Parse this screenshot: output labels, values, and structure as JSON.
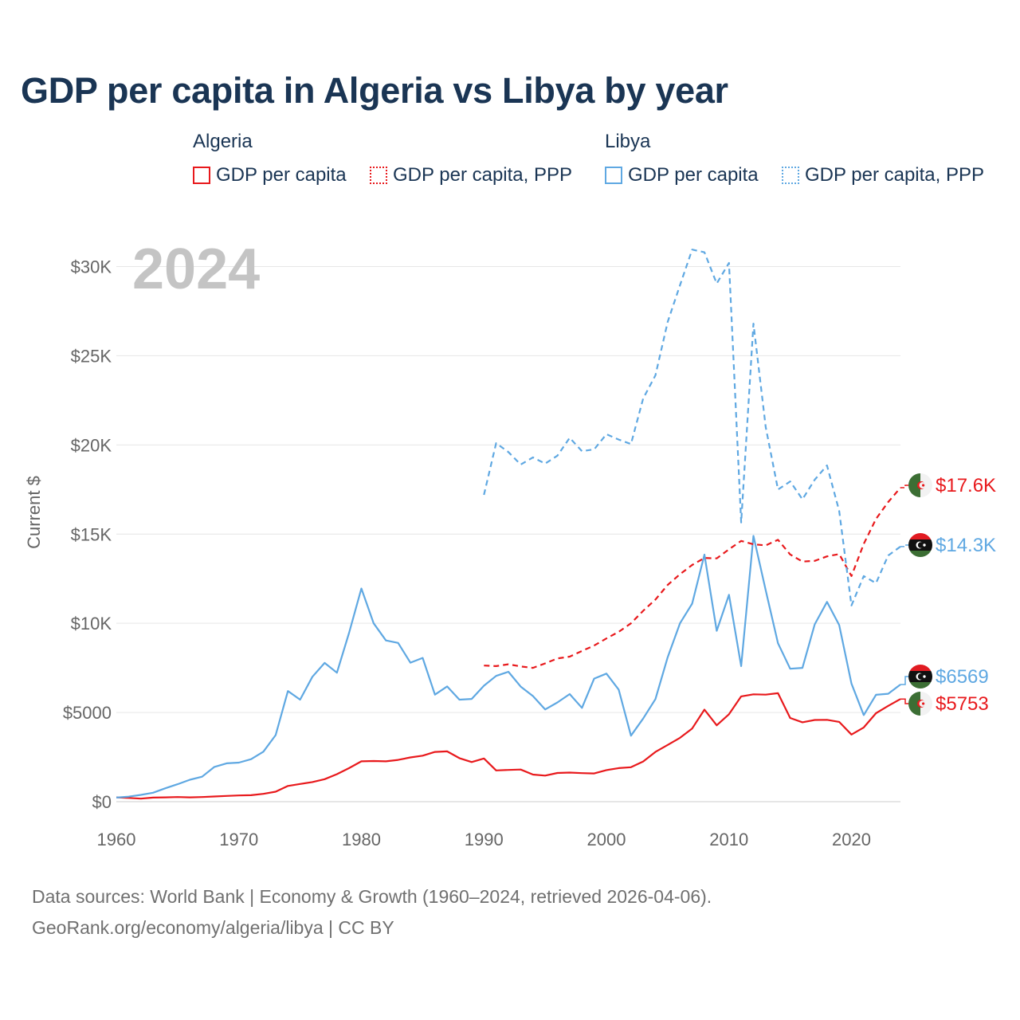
{
  "title": "GDP per capita in Algeria vs Libya by year",
  "legend": {
    "groups": [
      {
        "country": "Algeria",
        "items": [
          {
            "label": "GDP per capita",
            "style": "solid",
            "color": "#e8191c"
          },
          {
            "label": "GDP per capita, PPP",
            "style": "dotted",
            "color": "#e8191c"
          }
        ]
      },
      {
        "country": "Libya",
        "items": [
          {
            "label": "GDP per capita",
            "style": "solid",
            "color": "#5fa8e2"
          },
          {
            "label": "GDP per capita, PPP",
            "style": "dotted",
            "color": "#5fa8e2"
          }
        ]
      }
    ]
  },
  "year_label": "2024",
  "footer": {
    "line1": "Data sources: World Bank | Economy & Growth (1960–2024, retrieved 2026-04-06).",
    "line2": "GeoRank.org/economy/algeria/libya | CC BY"
  },
  "chart_data": {
    "type": "line",
    "title": "GDP per capita in Algeria vs Libya by year",
    "xlabel": "",
    "ylabel": "Current $",
    "xlim": [
      1960,
      2024
    ],
    "ylim": [
      0,
      31000
    ],
    "grid": true,
    "legend_position": "top",
    "x_ticks": [
      1960,
      1970,
      1980,
      1990,
      2000,
      2010,
      2020
    ],
    "x_tick_labels": [
      "1960",
      "1970",
      "1980",
      "1990",
      "2000",
      "2010",
      "2020"
    ],
    "y_ticks": [
      0,
      5000,
      10000,
      15000,
      20000,
      25000,
      30000
    ],
    "y_tick_labels": [
      "$0",
      "$5000",
      "$10K",
      "$15K",
      "$20K",
      "$25K",
      "$30K"
    ],
    "series": [
      {
        "name": "Algeria GDP per capita",
        "country": "Algeria",
        "color": "#e8191c",
        "dash": "solid",
        "start_year": 1960,
        "values": [
          240,
          210,
          170,
          230,
          240,
          260,
          240,
          260,
          290,
          320,
          350,
          360,
          440,
          560,
          880,
          990,
          1100,
          1260,
          1540,
          1880,
          2260,
          2280,
          2260,
          2340,
          2480,
          2580,
          2790,
          2820,
          2440,
          2220,
          2420,
          1750,
          1780,
          1800,
          1520,
          1460,
          1610,
          1630,
          1600,
          1580,
          1770,
          1880,
          1930,
          2250,
          2790,
          3180,
          3580,
          4100,
          5160,
          4280,
          4900,
          5900,
          6020,
          6000,
          6080,
          4690,
          4450,
          4580,
          4590,
          4470,
          3760,
          4160,
          4960,
          5370,
          5753
        ]
      },
      {
        "name": "Algeria GDP per capita, PPP",
        "country": "Algeria",
        "color": "#e8191c",
        "dash": "dashed",
        "start_year": 1990,
        "values": [
          7630,
          7600,
          7700,
          7580,
          7500,
          7750,
          8030,
          8130,
          8450,
          8750,
          9150,
          9520,
          10000,
          10700,
          11330,
          12150,
          12750,
          13270,
          13660,
          13640,
          14150,
          14620,
          14430,
          14370,
          14680,
          13860,
          13460,
          13500,
          13750,
          13880,
          12650,
          14450,
          15850,
          16800,
          17600
        ]
      },
      {
        "name": "Libya GDP per capita",
        "country": "Libya",
        "color": "#5fa8e2",
        "dash": "solid",
        "start_year": 1960,
        "values": [
          230,
          280,
          380,
          500,
          750,
          980,
          1230,
          1400,
          1950,
          2150,
          2190,
          2380,
          2800,
          3730,
          6200,
          5720,
          7000,
          7780,
          7230,
          9470,
          11950,
          10000,
          9040,
          8900,
          7790,
          8060,
          6000,
          6460,
          5720,
          5760,
          6500,
          7050,
          7280,
          6450,
          5920,
          5170,
          5560,
          6030,
          5260,
          6900,
          7180,
          6280,
          3700,
          4660,
          5750,
          8100,
          10000,
          11100,
          13850,
          9580,
          11600,
          7600,
          14900,
          11850,
          8880,
          7450,
          7500,
          9940,
          11200,
          9900,
          6620,
          4850,
          5990,
          6050,
          6569
        ]
      },
      {
        "name": "Libya GDP per capita, PPP",
        "country": "Libya",
        "color": "#5fa8e2",
        "dash": "dashed",
        "start_year": 1990,
        "values": [
          17200,
          20100,
          19600,
          18900,
          19300,
          18950,
          19400,
          20400,
          19650,
          19750,
          20600,
          20300,
          20050,
          22600,
          23900,
          26900,
          28950,
          30950,
          30800,
          29050,
          30200,
          15650,
          26800,
          21000,
          17500,
          17950,
          16950,
          18050,
          18850,
          16300,
          11000,
          12650,
          12250,
          13800,
          14300
        ]
      }
    ],
    "end_labels": [
      {
        "series": 1,
        "text": "$17.6K",
        "color": "#e8191c",
        "flag": "algeria"
      },
      {
        "series": 3,
        "text": "$14.3K",
        "color": "#5fa8e2",
        "flag": "libya"
      },
      {
        "series": 2,
        "text": "$6569",
        "color": "#5fa8e2",
        "flag": "libya"
      },
      {
        "series": 0,
        "text": "$5753",
        "color": "#e8191c",
        "flag": "algeria"
      }
    ]
  }
}
